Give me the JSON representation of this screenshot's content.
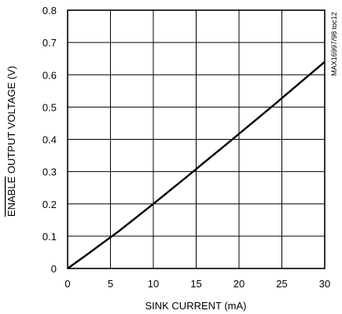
{
  "chart_data": {
    "type": "line",
    "title": "",
    "xlabel": "SINK CURRENT (mA)",
    "ylabel": "ENABLE OUTPUT VOLTAGE (V)",
    "ylabel_overline": "ENABLE",
    "ylabel_rest": " OUTPUT VOLTAGE (V)",
    "part_label": "MAX16997/98 toc12",
    "xlim": [
      0,
      30
    ],
    "ylim": [
      0,
      0.8
    ],
    "x_ticks": [
      0,
      5,
      10,
      15,
      20,
      25,
      30
    ],
    "y_ticks": [
      0,
      0.1,
      0.2,
      0.3,
      0.4,
      0.5,
      0.6,
      0.7,
      0.8
    ],
    "x_tick_labels": [
      "0",
      "5",
      "10",
      "15",
      "20",
      "25",
      "30"
    ],
    "y_tick_labels": [
      "0",
      "0.1",
      "0.2",
      "0.3",
      "0.4",
      "0.5",
      "0.6",
      "0.7",
      "0.8"
    ],
    "grid": true,
    "series": [
      {
        "x": [
          0,
          2,
          4,
          6,
          8,
          10,
          12,
          14,
          16,
          18,
          20,
          22,
          24,
          26,
          28,
          30
        ],
        "y": [
          0,
          0.038,
          0.077,
          0.116,
          0.158,
          0.2,
          0.243,
          0.286,
          0.33,
          0.373,
          0.417,
          0.461,
          0.505,
          0.55,
          0.595,
          0.64
        ]
      }
    ]
  }
}
